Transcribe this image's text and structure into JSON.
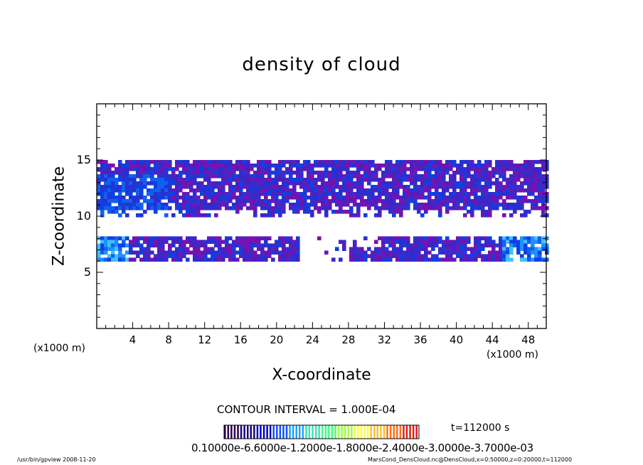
{
  "chart_data": {
    "type": "heatmap",
    "title": "density of cloud",
    "xlabel": "X-coordinate",
    "ylabel": "Z-coordinate",
    "x_unit_left": "(x1000 m)",
    "x_unit_right": "(x1000 m)",
    "xlim": [
      0,
      50
    ],
    "ylim": [
      0,
      20
    ],
    "x_ticks": [
      "4",
      "8",
      "12",
      "16",
      "20",
      "24",
      "28",
      "32",
      "36",
      "40",
      "44",
      "48"
    ],
    "y_ticks": [
      "5",
      "10",
      "15"
    ],
    "x_tick_values": [
      4,
      8,
      12,
      16,
      20,
      24,
      28,
      32,
      36,
      40,
      44,
      48
    ],
    "y_tick_values": [
      5,
      10,
      15
    ],
    "contour_interval_text": "CONTOUR INTERVAL = 1.000E-04",
    "time_label": "t=112000 s",
    "colorbar_labels": "0.10000e-6.6000e-1.2000e-1.8000e-2.4000e-3.0000e-3.7000e-03",
    "colorbar_colors": [
      "#2a0050",
      "#1a0080",
      "#0000c0",
      "#1050ff",
      "#20a0ff",
      "#40e0c0",
      "#40ff80",
      "#a0ff40",
      "#ffff40",
      "#ffc030",
      "#ff7020",
      "#e02010"
    ],
    "cloud_layers": [
      {
        "name": "upper",
        "x": [
          0,
          50
        ],
        "z_bottom": 10.0,
        "z_top": 15.0
      },
      {
        "name": "lower",
        "x": [
          0,
          50
        ],
        "z_bottom": 6.2,
        "z_top": 8.2
      }
    ]
  },
  "footer": {
    "left": "/usr/bin/gpview   2008-11-20",
    "right": "MarsCond_DensCloud.nc@DensCloud,x=0:50000,z=0:20000,t=112000"
  }
}
